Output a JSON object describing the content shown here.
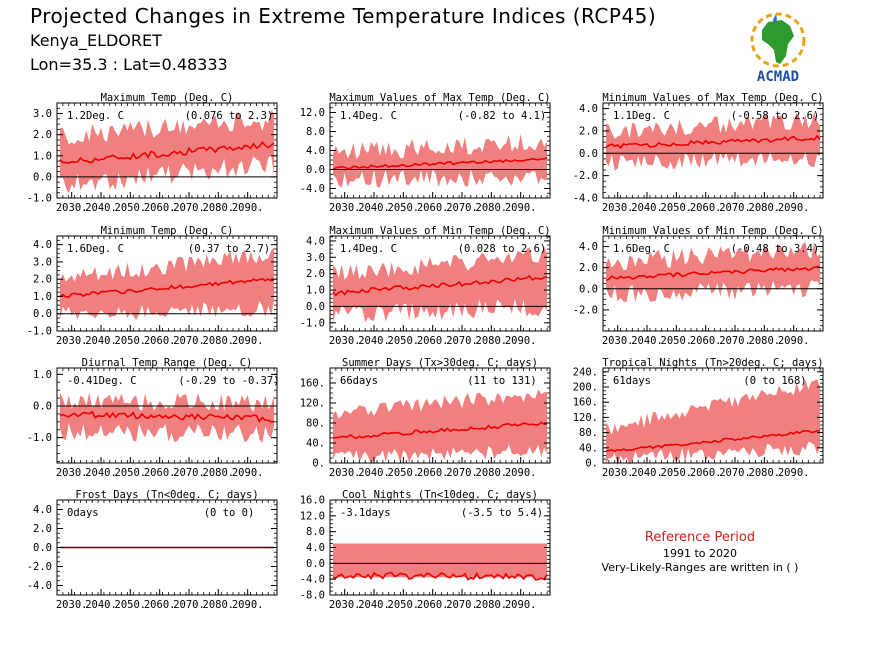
{
  "header": {
    "title": "Projected Changes in Extreme Temperature Indices (RCP45)",
    "station": "Kenya_ELDORET",
    "coords": "Lon=35.3 : Lat=0.48333"
  },
  "logo": {
    "text": "ACMAD",
    "icon": "africa-map-icon"
  },
  "reference": {
    "title": "Reference Period",
    "years": "1991 to 2020",
    "note": "Very-Likely-Ranges are written in ( )"
  },
  "colors": {
    "band": "#f08080",
    "line": "#ee0000",
    "axis": "#000000"
  },
  "x_tick_labels": [
    "2030.",
    "2040.",
    "2050.",
    "2060.",
    "2070.",
    "2080.",
    "2090."
  ],
  "chart_data": [
    {
      "type": "area",
      "title": "Maximum Temp (Deg. C)",
      "annotation": "1.2Deg. C",
      "range": "(0.076 to 2.3)",
      "ylim": [
        -1.0,
        3.5
      ],
      "yticks": [
        -1.0,
        0.0,
        1.0,
        2.0,
        3.0
      ],
      "ytick_labels": [
        "-1.0",
        "0.0",
        "1.0",
        "2.0",
        "3.0"
      ],
      "x": [
        2030,
        2100
      ],
      "mean": [
        0.7,
        1.55
      ],
      "lower": [
        -0.4,
        0.6
      ],
      "upper": [
        1.9,
        2.7
      ],
      "noise": [
        0.15,
        0.5
      ]
    },
    {
      "type": "area",
      "title": "Maximum Values of Max Temp (Deg. C)",
      "annotation": "1.4Deg. C",
      "range": "(-0.82 to 4.1)",
      "ylim": [
        -6.0,
        14.0
      ],
      "yticks": [
        -4.0,
        0.0,
        4.0,
        8.0,
        12.0
      ],
      "ytick_labels": [
        "-4.0",
        "0.0",
        "4.0",
        "8.0",
        "12.0"
      ],
      "x": [
        2030,
        2100
      ],
      "mean": [
        0.3,
        2.2
      ],
      "lower": [
        -2.0,
        -1.5
      ],
      "upper": [
        3.5,
        6.0
      ],
      "noise": [
        0.3,
        2.0
      ]
    },
    {
      "type": "area",
      "title": "Minimum Values of Max Temp (Deg. C)",
      "annotation": "1.1Deg. C",
      "range": "(-0.58 to 2.6)",
      "ylim": [
        -4.0,
        4.5
      ],
      "yticks": [
        -4.0,
        -2.0,
        0.0,
        2.0,
        4.0
      ],
      "ytick_labels": [
        "-4.0",
        "-2.0",
        "0.0",
        "2.0",
        "4.0"
      ],
      "x": [
        2030,
        2100
      ],
      "mean": [
        0.6,
        1.4
      ],
      "lower": [
        -0.8,
        -0.5
      ],
      "upper": [
        2.0,
        3.0
      ],
      "noise": [
        0.2,
        0.8
      ]
    },
    {
      "type": "area",
      "title": "Minimum Temp (Deg. C)",
      "annotation": "1.6Deg. C",
      "range": "(0.37 to 2.7)",
      "ylim": [
        -1.0,
        4.5
      ],
      "yticks": [
        -1.0,
        0.0,
        1.0,
        2.0,
        3.0,
        4.0
      ],
      "ytick_labels": [
        "-1.0",
        "0.0",
        "1.0",
        "2.0",
        "3.0",
        "4.0"
      ],
      "x": [
        2030,
        2100
      ],
      "mean": [
        1.0,
        2.0
      ],
      "lower": [
        -0.1,
        0.3
      ],
      "upper": [
        2.0,
        3.5
      ],
      "noise": [
        0.12,
        0.5
      ]
    },
    {
      "type": "area",
      "title": "Maximum Values of Min Temp (Deg. C)",
      "annotation": "1.4Deg. C",
      "range": "(0.028 to 2.6)",
      "ylim": [
        -1.5,
        4.3
      ],
      "yticks": [
        -1.0,
        0.0,
        1.0,
        2.0,
        3.0,
        4.0
      ],
      "ytick_labels": [
        "-1.0",
        "0.0",
        "1.0",
        "2.0",
        "3.0",
        "4.0"
      ],
      "x": [
        2030,
        2100
      ],
      "mean": [
        0.8,
        1.8
      ],
      "lower": [
        -0.5,
        0.0
      ],
      "upper": [
        2.0,
        3.2
      ],
      "noise": [
        0.15,
        0.6
      ]
    },
    {
      "type": "area",
      "title": "Minimum Values of Min Temp (Deg. C)",
      "annotation": "1.6Deg. C",
      "range": "(-0.48 to 3.4)",
      "ylim": [
        -4.0,
        5.0
      ],
      "yticks": [
        -2.0,
        0.0,
        2.0,
        4.0
      ],
      "ytick_labels": [
        "-2.0",
        "0.0",
        "2.0",
        "4.0"
      ],
      "x": [
        2030,
        2100
      ],
      "mean": [
        1.0,
        2.0
      ],
      "lower": [
        -0.5,
        0.0
      ],
      "upper": [
        2.5,
        3.8
      ],
      "noise": [
        0.2,
        0.9
      ]
    },
    {
      "type": "area",
      "title": "Diurnal Temp Range (Deg. C)",
      "annotation": "-0.41Deg. C",
      "range": "(-0.29 to -0.37)",
      "ylim": [
        -1.8,
        1.2
      ],
      "yticks": [
        -1.0,
        0.0,
        1.0
      ],
      "ytick_labels": [
        "-1.0",
        "0.0",
        "1.0"
      ],
      "x": [
        2030,
        2100
      ],
      "mean": [
        -0.25,
        -0.4
      ],
      "lower": [
        -0.8,
        -0.9
      ],
      "upper": [
        0.15,
        0.1
      ],
      "noise": [
        0.1,
        0.3
      ]
    },
    {
      "type": "area",
      "title": "Summer Days (Tx>30deg. C; days)",
      "annotation": "66days",
      "range": "(11 to 131)",
      "ylim": [
        0,
        190
      ],
      "yticks": [
        0,
        40,
        80,
        120,
        160
      ],
      "ytick_labels": [
        "0.",
        "40.",
        "80.",
        "120.",
        "160."
      ],
      "x": [
        2030,
        2100
      ],
      "mean": [
        50,
        80
      ],
      "lower": [
        10,
        25
      ],
      "upper": [
        100,
        140
      ],
      "noise": [
        4,
        15
      ]
    },
    {
      "type": "area",
      "title": "Tropical Nights (Tn>20deg. C; days)",
      "annotation": "61days",
      "range": "(0 to 168)",
      "ylim": [
        0,
        250
      ],
      "yticks": [
        0,
        40,
        80,
        120,
        160,
        200,
        240
      ],
      "ytick_labels": [
        "0.",
        "40.",
        "80.",
        "120.",
        "160.",
        "200.",
        "240."
      ],
      "x": [
        2030,
        2100
      ],
      "mean": [
        30,
        85
      ],
      "lower": [
        10,
        40
      ],
      "upper": [
        90,
        210
      ],
      "noise": [
        4,
        20
      ]
    },
    {
      "type": "area",
      "title": "Frost Days (Tn<0deg. C; days)",
      "annotation": "0days",
      "range": "(0 to 0)",
      "ylim": [
        -5.0,
        5.0
      ],
      "yticks": [
        -4.0,
        -2.0,
        0.0,
        2.0,
        4.0
      ],
      "ytick_labels": [
        "-4.0",
        "-2.0",
        "0.0",
        "2.0",
        "4.0"
      ],
      "x": [
        2030,
        2100
      ],
      "mean": [
        0,
        0
      ],
      "lower": [
        0,
        0
      ],
      "upper": [
        0,
        0
      ],
      "noise": [
        0,
        0
      ]
    },
    {
      "type": "area",
      "title": "Cool Nights (Tn<10deg. C; days)",
      "annotation": "-3.1days",
      "range": "(-3.5 to 5.4)",
      "ylim": [
        -8.0,
        16.0
      ],
      "yticks": [
        -8.0,
        -4.0,
        0.0,
        4.0,
        8.0,
        12.0,
        16.0
      ],
      "ytick_labels": [
        "-8.0",
        "-4.0",
        "0.0",
        "4.0",
        "8.0",
        "12.0",
        "16.0"
      ],
      "x": [
        2030,
        2100
      ],
      "mean": [
        -3.0,
        -3.5
      ],
      "lower": [
        -3.5,
        -3.5
      ],
      "upper": [
        5.0,
        5.0
      ],
      "noise": [
        0.8,
        0
      ]
    }
  ]
}
